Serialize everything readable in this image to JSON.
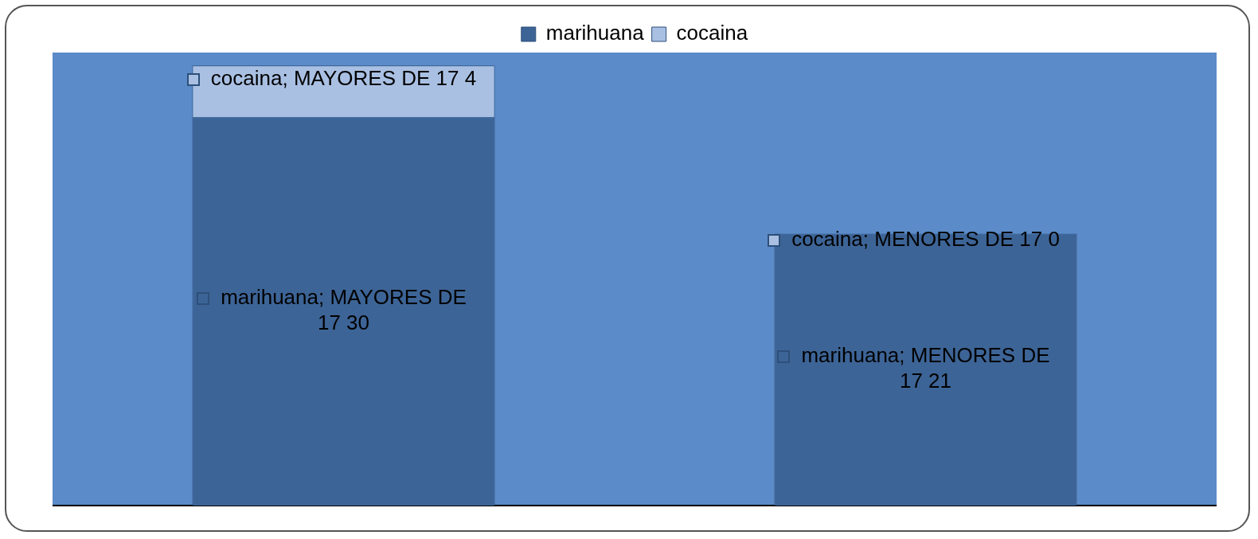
{
  "chart_data": {
    "type": "bar",
    "stacked": true,
    "categories": [
      null,
      null
    ],
    "legend": "top",
    "series": [
      {
        "name": "marihuana",
        "color": "#3d6496",
        "values": [
          30,
          21
        ],
        "value_labels": [
          "marihuana; MAYORES DE 17 30",
          "marihuana; MENORES DE 17 21"
        ]
      },
      {
        "name": "cocaina",
        "color": "#a9c0e3",
        "values": [
          4,
          0
        ],
        "value_labels": [
          "cocaina; MAYORES DE 17 4",
          "cocaina; MENORES DE 17 0"
        ]
      }
    ]
  }
}
